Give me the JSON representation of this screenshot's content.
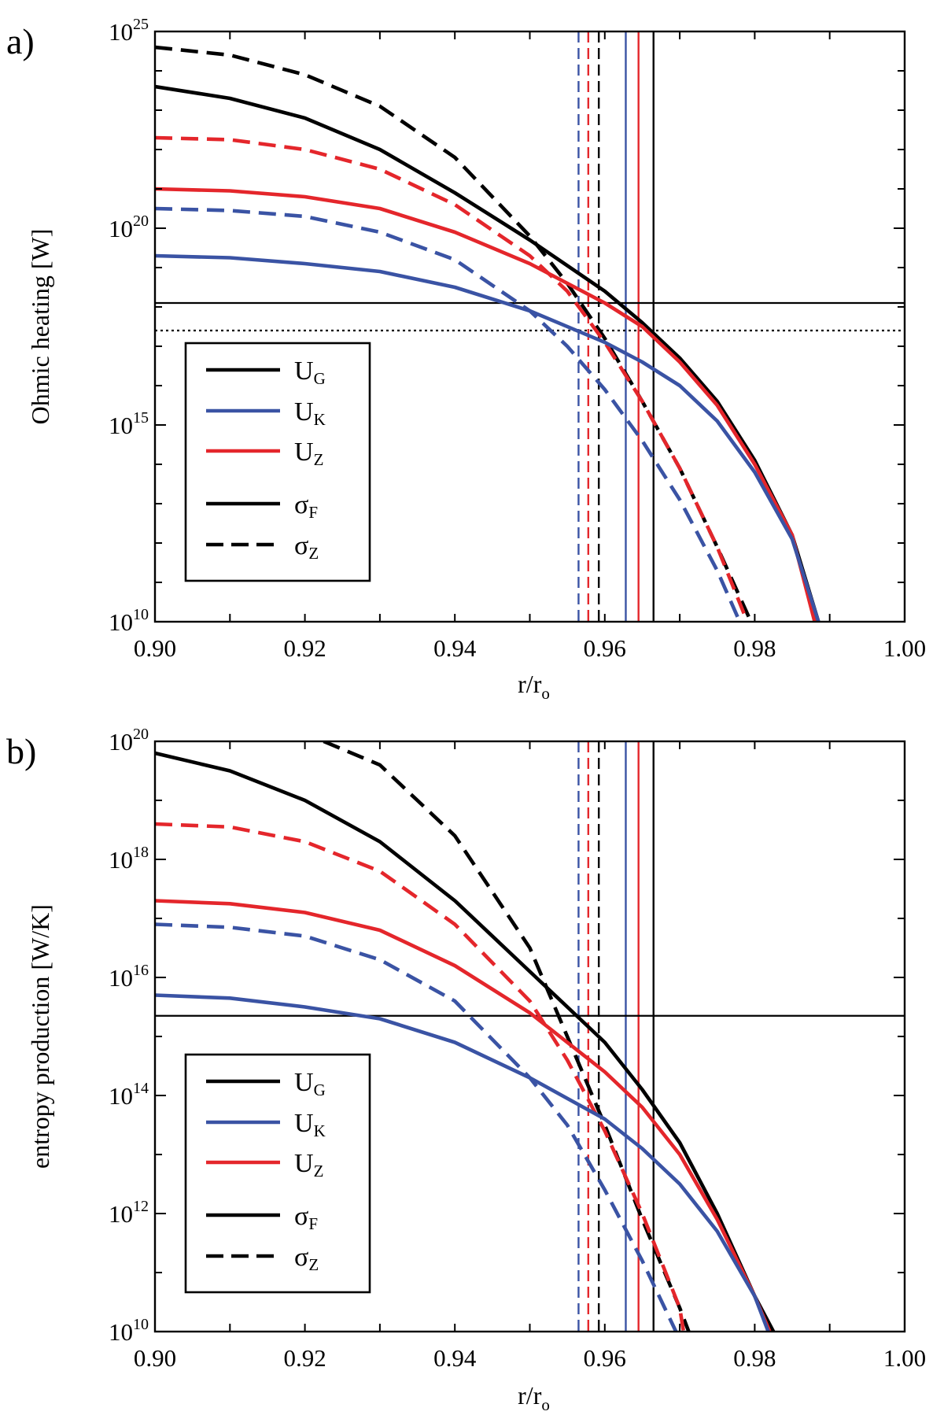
{
  "chart_data": [
    {
      "type": "line",
      "panel_label": "a)",
      "xlabel": "r/r",
      "xlabel_sub": "o",
      "ylabel": "Ohmic heating [W]",
      "yscale": "log",
      "xlim": [
        0.9,
        1.0
      ],
      "ylim_exp": [
        10,
        25
      ],
      "ytick_base": "10",
      "yticks_exp": [
        10,
        15,
        20,
        25
      ],
      "xticks": [
        "0.90",
        "0.92",
        "0.94",
        "0.96",
        "0.98",
        "1.00"
      ],
      "series": [
        {
          "name": "U_G sigma_Z",
          "color": "#000000",
          "dash": "dashed",
          "x": [
            0.9,
            0.91,
            0.92,
            0.93,
            0.94,
            0.95,
            0.955,
            0.96,
            0.965,
            0.97,
            0.975,
            0.9795
          ],
          "y_exp": [
            24.6,
            24.4,
            23.9,
            23.1,
            21.8,
            19.8,
            18.6,
            17.2,
            15.6,
            13.9,
            11.9,
            10.0
          ]
        },
        {
          "name": "U_G sigma_F",
          "color": "#000000",
          "dash": "solid",
          "x": [
            0.9,
            0.91,
            0.92,
            0.93,
            0.94,
            0.95,
            0.96,
            0.965,
            0.97,
            0.975,
            0.98,
            0.985,
            0.9885
          ],
          "y_exp": [
            23.6,
            23.3,
            22.8,
            22.0,
            20.9,
            19.7,
            18.4,
            17.6,
            16.7,
            15.6,
            14.1,
            12.2,
            10.0
          ]
        },
        {
          "name": "U_Z sigma_Z",
          "color": "#e4262b",
          "dash": "dashed",
          "x": [
            0.9,
            0.91,
            0.92,
            0.93,
            0.94,
            0.95,
            0.955,
            0.96,
            0.965,
            0.97,
            0.975,
            0.979
          ],
          "y_exp": [
            22.3,
            22.25,
            22.0,
            21.5,
            20.6,
            19.3,
            18.4,
            17.1,
            15.6,
            13.9,
            11.9,
            10.0
          ]
        },
        {
          "name": "U_Z sigma_F",
          "color": "#e4262b",
          "dash": "solid",
          "x": [
            0.9,
            0.91,
            0.92,
            0.93,
            0.94,
            0.95,
            0.96,
            0.965,
            0.97,
            0.975,
            0.98,
            0.985,
            0.988
          ],
          "y_exp": [
            21.0,
            20.95,
            20.8,
            20.5,
            19.9,
            19.1,
            18.1,
            17.5,
            16.6,
            15.5,
            14.0,
            12.2,
            10.0
          ]
        },
        {
          "name": "U_K sigma_Z",
          "color": "#3a53a4",
          "dash": "dashed",
          "x": [
            0.9,
            0.91,
            0.92,
            0.93,
            0.94,
            0.95,
            0.955,
            0.96,
            0.965,
            0.97,
            0.975,
            0.978
          ],
          "y_exp": [
            20.5,
            20.45,
            20.3,
            19.9,
            19.2,
            17.9,
            17.0,
            15.9,
            14.6,
            13.1,
            11.3,
            10.0
          ]
        },
        {
          "name": "U_K sigma_F",
          "color": "#3a53a4",
          "dash": "solid",
          "x": [
            0.9,
            0.91,
            0.92,
            0.93,
            0.94,
            0.95,
            0.96,
            0.965,
            0.97,
            0.975,
            0.98,
            0.985,
            0.9885
          ],
          "y_exp": [
            19.3,
            19.25,
            19.1,
            18.9,
            18.5,
            17.9,
            17.1,
            16.6,
            16.0,
            15.1,
            13.8,
            12.1,
            10.0
          ]
        }
      ],
      "vlines": [
        {
          "x": 0.9565,
          "color": "#3a53a4",
          "dash": "dashed"
        },
        {
          "x": 0.9578,
          "color": "#e4262b",
          "dash": "dashed"
        },
        {
          "x": 0.9592,
          "color": "#000000",
          "dash": "dashed"
        },
        {
          "x": 0.9628,
          "color": "#3a53a4",
          "dash": "solid"
        },
        {
          "x": 0.9645,
          "color": "#e4262b",
          "dash": "solid"
        },
        {
          "x": 0.9665,
          "color": "#000000",
          "dash": "solid"
        }
      ],
      "hlines": [
        {
          "y_exp": 18.1,
          "color": "#000000",
          "dash": "solid"
        },
        {
          "y_exp": 17.4,
          "color": "#000000",
          "dash": "dotted"
        }
      ],
      "legend": {
        "position": "lower-left",
        "entries": [
          {
            "label": "U",
            "sub": "G",
            "color": "#000000",
            "dash": "solid"
          },
          {
            "label": "U",
            "sub": "K",
            "color": "#3a53a4",
            "dash": "solid"
          },
          {
            "label": "U",
            "sub": "Z",
            "color": "#e4262b",
            "dash": "solid"
          },
          {
            "label": "σ",
            "sub": "F",
            "color": "#000000",
            "dash": "solid"
          },
          {
            "label": "σ",
            "sub": "Z",
            "color": "#000000",
            "dash": "dashed"
          }
        ]
      }
    },
    {
      "type": "line",
      "panel_label": "b)",
      "xlabel": "r/r",
      "xlabel_sub": "o",
      "ylabel": "entropy production [W/K]",
      "yscale": "log",
      "xlim": [
        0.9,
        1.0
      ],
      "ylim_exp": [
        10,
        20
      ],
      "ytick_base": "10",
      "yticks_exp": [
        10,
        12,
        14,
        16,
        18,
        20
      ],
      "xticks": [
        "0.90",
        "0.92",
        "0.94",
        "0.96",
        "0.98",
        "1.00"
      ],
      "series": [
        {
          "name": "U_G sigma_Z",
          "color": "#000000",
          "dash": "dashed",
          "x": [
            0.9225,
            0.93,
            0.94,
            0.95,
            0.955,
            0.96,
            0.965,
            0.97,
            0.9712
          ],
          "y_exp": [
            20.0,
            19.6,
            18.4,
            16.5,
            15.0,
            13.5,
            11.9,
            10.4,
            10.0
          ]
        },
        {
          "name": "U_G sigma_F",
          "color": "#000000",
          "dash": "solid",
          "x": [
            0.9,
            0.91,
            0.92,
            0.93,
            0.94,
            0.95,
            0.96,
            0.965,
            0.97,
            0.975,
            0.98,
            0.9825
          ],
          "y_exp": [
            19.8,
            19.5,
            19.0,
            18.3,
            17.3,
            16.1,
            14.9,
            14.1,
            13.2,
            12.0,
            10.6,
            10.0
          ]
        },
        {
          "name": "U_Z sigma_Z",
          "color": "#e4262b",
          "dash": "dashed",
          "x": [
            0.9,
            0.91,
            0.92,
            0.93,
            0.94,
            0.95,
            0.955,
            0.96,
            0.965,
            0.97,
            0.9705
          ],
          "y_exp": [
            18.6,
            18.55,
            18.3,
            17.8,
            16.9,
            15.6,
            14.6,
            13.4,
            12.0,
            10.4,
            10.0
          ]
        },
        {
          "name": "U_Z sigma_F",
          "color": "#e4262b",
          "dash": "solid",
          "x": [
            0.9,
            0.91,
            0.92,
            0.93,
            0.94,
            0.95,
            0.96,
            0.965,
            0.97,
            0.975,
            0.98,
            0.982
          ],
          "y_exp": [
            17.3,
            17.25,
            17.1,
            16.8,
            16.2,
            15.4,
            14.4,
            13.8,
            13.0,
            11.9,
            10.6,
            10.0
          ]
        },
        {
          "name": "U_K sigma_Z",
          "color": "#3a53a4",
          "dash": "dashed",
          "x": [
            0.9,
            0.91,
            0.92,
            0.93,
            0.94,
            0.95,
            0.955,
            0.96,
            0.965,
            0.9695
          ],
          "y_exp": [
            16.9,
            16.85,
            16.7,
            16.3,
            15.6,
            14.3,
            13.5,
            12.4,
            11.2,
            10.0
          ]
        },
        {
          "name": "U_K sigma_F",
          "color": "#3a53a4",
          "dash": "solid",
          "x": [
            0.9,
            0.91,
            0.92,
            0.93,
            0.94,
            0.95,
            0.96,
            0.965,
            0.97,
            0.975,
            0.98,
            0.9818
          ],
          "y_exp": [
            15.7,
            15.65,
            15.5,
            15.3,
            14.9,
            14.3,
            13.6,
            13.1,
            12.5,
            11.7,
            10.6,
            10.0
          ]
        }
      ],
      "vlines": [
        {
          "x": 0.9565,
          "color": "#3a53a4",
          "dash": "dashed"
        },
        {
          "x": 0.9578,
          "color": "#e4262b",
          "dash": "dashed"
        },
        {
          "x": 0.9592,
          "color": "#000000",
          "dash": "dashed"
        },
        {
          "x": 0.9628,
          "color": "#3a53a4",
          "dash": "solid"
        },
        {
          "x": 0.9645,
          "color": "#e4262b",
          "dash": "solid"
        },
        {
          "x": 0.9665,
          "color": "#000000",
          "dash": "solid"
        }
      ],
      "hlines": [
        {
          "y_exp": 15.35,
          "color": "#000000",
          "dash": "solid"
        }
      ],
      "legend": {
        "position": "lower-left",
        "entries": [
          {
            "label": "U",
            "sub": "G",
            "color": "#000000",
            "dash": "solid"
          },
          {
            "label": "U",
            "sub": "K",
            "color": "#3a53a4",
            "dash": "solid"
          },
          {
            "label": "U",
            "sub": "Z",
            "color": "#e4262b",
            "dash": "solid"
          },
          {
            "label": "σ",
            "sub": "F",
            "color": "#000000",
            "dash": "solid"
          },
          {
            "label": "σ",
            "sub": "Z",
            "color": "#000000",
            "dash": "dashed"
          }
        ]
      }
    }
  ]
}
